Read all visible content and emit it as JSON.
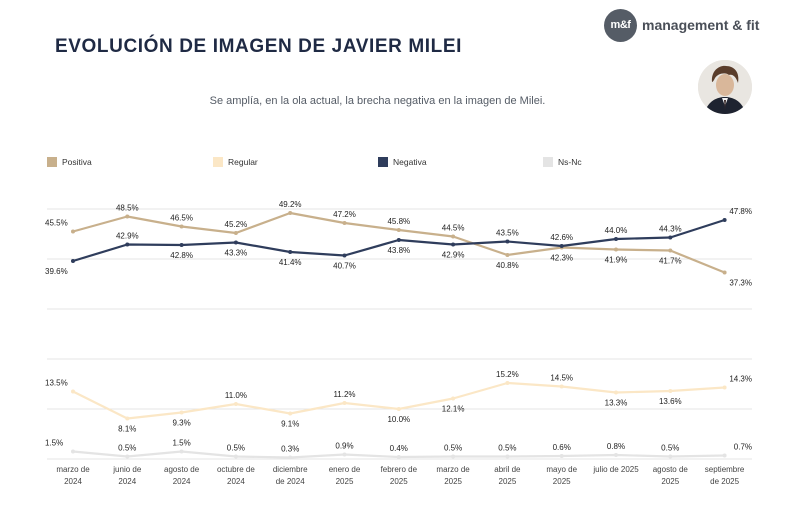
{
  "header": {
    "title": "EVOLUCIÓN DE IMAGEN DE JAVIER MILEI",
    "subtitle": "Se amplía, en la ola actual, la brecha negativa en la imagen de Milei.",
    "brand_logo": "m&f",
    "brand_name": "management & fit"
  },
  "chart_data": {
    "type": "line",
    "categories": [
      [
        "marzo de",
        "2024"
      ],
      [
        "junio de",
        "2024"
      ],
      [
        "agosto de",
        "2024"
      ],
      [
        "octubre de",
        "2024"
      ],
      [
        "diciembre",
        "de 2024"
      ],
      [
        "enero de",
        "2025"
      ],
      [
        "febrero de",
        "2025"
      ],
      [
        "marzo de",
        "2025"
      ],
      [
        "abril de",
        "2025"
      ],
      [
        "mayo de",
        "2025"
      ],
      [
        "julio de 2025",
        ""
      ],
      [
        "agosto de",
        "2025"
      ],
      [
        "septiembre",
        "de 2025"
      ]
    ],
    "series": [
      {
        "name": "Positiva",
        "color": "#c8b08c",
        "values": [
          45.5,
          48.5,
          46.5,
          45.2,
          49.2,
          47.2,
          45.8,
          44.5,
          40.8,
          42.3,
          41.9,
          41.7,
          37.3
        ],
        "labels": [
          "45.5%",
          "48.5%",
          "46.5%",
          "45.2%",
          "49.2%",
          "47.2%",
          "45.8%",
          "44.5%",
          "40.8%",
          "42.3%",
          "41.9%",
          "41.7%",
          "37.3%"
        ]
      },
      {
        "name": "Regular",
        "color": "#fbe7c6",
        "values": [
          13.5,
          8.1,
          9.3,
          11.0,
          9.1,
          11.2,
          10.0,
          12.1,
          15.2,
          14.5,
          13.3,
          13.6,
          14.3
        ],
        "labels": [
          "13.5%",
          "8.1%",
          "9.3%",
          "11.0%",
          "9.1%",
          "11.2%",
          "10.0%",
          "12.1%",
          "15.2%",
          "14.5%",
          "13.3%",
          "13.6%",
          "14.3%"
        ]
      },
      {
        "name": "Negativa",
        "color": "#2f3d5c",
        "values": [
          39.6,
          42.9,
          42.8,
          43.3,
          41.4,
          40.7,
          43.8,
          42.9,
          43.5,
          42.6,
          44.0,
          44.3,
          47.8
        ],
        "labels": [
          "39.6%",
          "42.9%",
          "42.8%",
          "43.3%",
          "41.4%",
          "40.7%",
          "43.8%",
          "42.9%",
          "43.5%",
          "42.6%",
          "44.0%",
          "44.3%",
          "47.8%"
        ]
      },
      {
        "name": "Ns-Nc",
        "color": "#e4e4e4",
        "values": [
          1.5,
          0.5,
          1.5,
          0.5,
          0.3,
          0.9,
          0.4,
          0.5,
          0.5,
          0.6,
          0.8,
          0.5,
          0.7
        ],
        "labels": [
          "1.5%",
          "0.5%",
          "1.5%",
          "0.5%",
          "0.3%",
          "0.9%",
          "0.4%",
          "0.5%",
          "0.5%",
          "0.6%",
          "0.8%",
          "0.5%",
          "0.7%"
        ]
      }
    ],
    "ylim": [
      0,
      50
    ],
    "grid": true,
    "legend": "top"
  }
}
